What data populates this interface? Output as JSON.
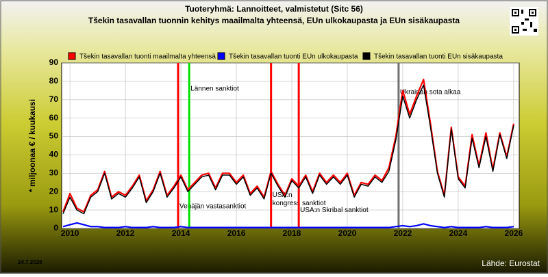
{
  "chart_data": {
    "type": "line",
    "title": "Tuoteryhmä: Lannoitteet, valmistetut (Sitc 56)",
    "subtitle": "Tšekin tasavallan tuonnin kehitys maailmalta yhteensä, EUn ulkokaupasta ja EUn sisäkaupasta",
    "ylabel": "* miljoonaa € / kuukausi",
    "date": "24.7.2026",
    "source": "Lähde: Eurostat",
    "xlim": [
      2009.7,
      2026.2
    ],
    "xticks": [
      2010,
      2012,
      2014,
      2016,
      2018,
      2020,
      2022,
      2024,
      2026
    ],
    "ylim": [
      0,
      90
    ],
    "yticks": [
      0,
      10,
      20,
      30,
      40,
      50,
      60,
      70,
      80,
      90
    ],
    "grid": true,
    "x": [
      2009.75,
      2010.0,
      2010.25,
      2010.5,
      2010.75,
      2011.0,
      2011.25,
      2011.5,
      2011.75,
      2012.0,
      2012.25,
      2012.5,
      2012.75,
      2013.0,
      2013.25,
      2013.5,
      2013.75,
      2014.0,
      2014.25,
      2014.5,
      2014.75,
      2015.0,
      2015.25,
      2015.5,
      2015.75,
      2016.0,
      2016.25,
      2016.5,
      2016.75,
      2017.0,
      2017.25,
      2017.5,
      2017.75,
      2018.0,
      2018.25,
      2018.5,
      2018.75,
      2019.0,
      2019.25,
      2019.5,
      2019.75,
      2020.0,
      2020.25,
      2020.5,
      2020.75,
      2021.0,
      2021.25,
      2021.5,
      2021.75,
      2022.0,
      2022.25,
      2022.5,
      2022.75,
      2023.0,
      2023.25,
      2023.5,
      2023.75,
      2024.0,
      2024.25,
      2024.5,
      2024.75,
      2025.0,
      2025.25,
      2025.5,
      2025.75,
      2026.0
    ],
    "series": [
      {
        "name": "Tšekin tasavallan tuonti maailmalta yhteensä",
        "color": "#ff0000",
        "values": [
          9,
          19,
          11,
          9,
          18,
          21,
          31,
          17,
          20,
          18,
          23,
          29,
          15,
          21,
          31,
          18,
          23,
          29,
          21,
          25,
          29,
          30,
          22,
          30,
          30,
          25,
          29,
          19,
          23,
          17,
          31,
          24,
          18,
          27,
          23,
          29,
          20,
          30,
          25,
          29,
          25,
          30,
          18,
          25,
          24,
          29,
          26,
          33,
          50,
          75,
          62,
          72,
          81,
          57,
          31,
          18,
          55,
          28,
          23,
          51,
          34,
          52,
          32,
          52,
          39,
          57
        ]
      },
      {
        "name": "Tšekin tasavallan tuonti EUn ulkokaupasta",
        "color": "#0000ff",
        "values": [
          1,
          2,
          3,
          2,
          1,
          1,
          0.5,
          0.5,
          0.5,
          1,
          0.5,
          0.5,
          0.5,
          1,
          0.5,
          0.5,
          0.5,
          1,
          0.5,
          0.5,
          0.5,
          0.5,
          0.5,
          0.5,
          0.5,
          0.5,
          0.5,
          0.5,
          0.5,
          0.5,
          0.5,
          0.5,
          0.5,
          0.5,
          0.5,
          0.5,
          0.5,
          0.5,
          0.5,
          0.5,
          0.5,
          0.5,
          0.5,
          0.5,
          0.5,
          0.5,
          0.5,
          0.5,
          1,
          1.5,
          1,
          1.5,
          2.5,
          1.5,
          1,
          0.5,
          1,
          0.5,
          0.5,
          0.5,
          0.5,
          1,
          0.5,
          0.5,
          0.5,
          1
        ]
      },
      {
        "name": "Tšekin tasavallan tuonti EUn sisäkaupasta",
        "color": "#000000",
        "values": [
          8,
          17,
          10,
          8,
          17,
          20,
          30,
          16,
          19,
          17,
          22,
          28,
          14,
          20,
          30,
          17,
          22,
          28,
          20,
          24,
          28,
          29,
          21,
          29,
          29,
          24,
          28,
          18,
          22,
          16,
          30,
          23,
          17,
          26,
          22,
          28,
          19,
          29,
          24,
          28,
          24,
          29,
          17,
          24,
          23,
          28,
          25,
          31,
          48,
          72,
          60,
          70,
          78,
          55,
          30,
          17,
          54,
          27,
          22,
          49,
          33,
          50,
          31,
          51,
          38,
          56
        ]
      }
    ],
    "events": [
      {
        "x": 2013.9,
        "color": "#ff0000",
        "labels": [
          "Venäjän vastasanktiot"
        ],
        "label_y": 12
      },
      {
        "x": 2014.3,
        "color": "#00e000",
        "labels": [
          "Lännen sanktiot"
        ],
        "label_y": 76
      },
      {
        "x": 2017.25,
        "color": "#ff0000",
        "labels": [
          "USA:n",
          "kongress sanktiot"
        ],
        "label_y": 18
      },
      {
        "x": 2018.25,
        "color": "#ff0000",
        "labels": [
          "USA:n Skribal sanktiot"
        ],
        "label_y": 10
      },
      {
        "x": 2021.85,
        "color": "#707070",
        "labels": [
          "Ukrainan sota alkaa"
        ],
        "label_y": 74
      }
    ]
  }
}
